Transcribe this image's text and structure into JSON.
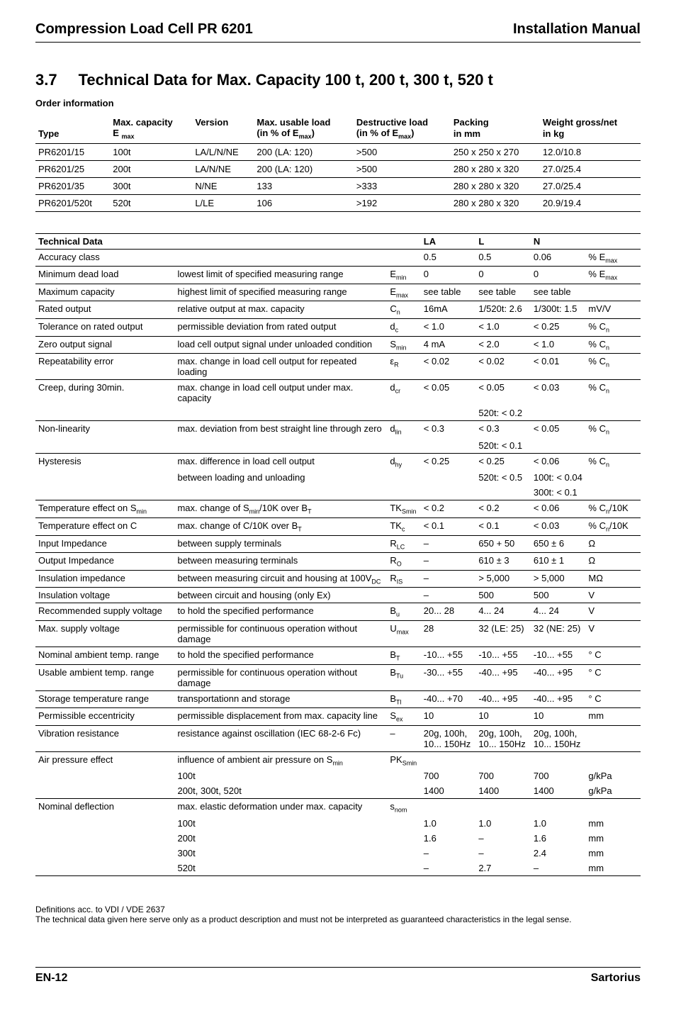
{
  "header": {
    "left": "Compression Load Cell PR 6201",
    "right": "Installation Manual"
  },
  "section": {
    "num": "3.7",
    "title": "Technical Data for Max. Capacity 100 t, 200 t, 300 t, 520 t"
  },
  "order_heading": "Order information",
  "order_cols": {
    "c1a": "",
    "c1b": "Type",
    "c2a": "Max. capacity",
    "c2b_html": "E <sub>max</sub>",
    "c3a": "Version",
    "c3b": "",
    "c4a": "Max. usable load",
    "c4b_html": "(in % of E<sub>max</sub>)",
    "c5a": "Destructive load",
    "c5b_html": "(in % of E<sub>max</sub>)",
    "c6a": "Packing",
    "c6b": "in mm",
    "c7a": "Weight gross/net",
    "c7b": "in kg"
  },
  "order_rows": [
    [
      "PR6201/15",
      "100t",
      "LA/L/N/NE",
      "200 (LA: 120)",
      ">500",
      "250 x 250 x 270",
      "12.0/10.8"
    ],
    [
      "PR6201/25",
      "200t",
      "LA/N/NE",
      "200 (LA: 120)",
      ">500",
      "280 x 280 x 320",
      "27.0/25.4"
    ],
    [
      "PR6201/35",
      "300t",
      "N/NE",
      "133",
      ">333",
      "280 x 280 x 320",
      "27.0/25.4"
    ],
    [
      "PR6201/520t",
      "520t",
      "L/LE",
      "106",
      ">192",
      "280 x 280 x 320",
      "20.9/19.4"
    ]
  ],
  "tech_head": {
    "p": "Technical Data",
    "la": "LA",
    "l": "L",
    "n": "N"
  },
  "tech": [
    {
      "p": "Accuracy class",
      "d": "",
      "s": "",
      "la": "0.5",
      "l": "0.5",
      "n": "0.06",
      "u_html": "% E<sub>max</sub>",
      "bb": true
    },
    {
      "p": "Minimum dead load",
      "d": "lowest limit of specified measuring range",
      "s_html": "E<sub>min</sub>",
      "la": "0",
      "l": "0",
      "n": "0",
      "u_html": "% E<sub>max</sub>",
      "bb": true
    },
    {
      "p": "Maximum capacity",
      "d": "highest limit of specified measuring range",
      "s_html": "E<sub>max</sub>",
      "la": "see table",
      "l": "see table",
      "n": "see table",
      "u": "",
      "bb": true
    },
    {
      "p": "Rated output",
      "d": "relative output at max. capacity",
      "s_html": "C<sub>n</sub>",
      "la": "16mA",
      "l": "1/520t: 2.6",
      "n": "1/300t: 1.5",
      "u": "mV/V",
      "bb": true
    },
    {
      "p": "Tolerance on rated output",
      "d": "permissible deviation from rated output",
      "s_html": "d<sub>c</sub>",
      "la": "< 1.0",
      "l": "< 1.0",
      "n": "< 0.25",
      "u_html": "% C<sub>n</sub>",
      "bb": true
    },
    {
      "p": "Zero output signal",
      "d": "load cell output signal under unloaded condition",
      "s_html": "S<sub>min</sub>",
      "la": "4 mA",
      "l": "< 2.0",
      "n": "< 1.0",
      "u_html": "% C<sub>n</sub>",
      "bb": true
    },
    {
      "p": "Repeatability error",
      "d": "max. change in load cell output for repeated loading",
      "s_html": "ε<sub>R</sub>",
      "la": "< 0.02",
      "l": "< 0.02",
      "n": "< 0.01",
      "u_html": "% C<sub>n</sub>",
      "bb": true
    },
    {
      "p": "Creep, during 30min.",
      "d": "max. change in load cell output under max. capacity",
      "s_html": "d<sub>cr</sub>",
      "la": "< 0.05",
      "l": "< 0.05",
      "n": "< 0.03",
      "u_html": "% C<sub>n</sub>"
    },
    {
      "p": "",
      "d": "",
      "s": "",
      "la": "",
      "l": "520t: < 0.2",
      "n": "",
      "u": "",
      "bb": true
    },
    {
      "p": "Non-linearity",
      "d": "max. deviation from best straight line through zero",
      "s_html": "d<sub>lin</sub>",
      "la": "< 0.3",
      "l": "< 0.3",
      "n": "< 0.05",
      "u_html": "% C<sub>n</sub>"
    },
    {
      "p": "",
      "d": "",
      "s": "",
      "la": "",
      "l": "520t: < 0.1",
      "n": "",
      "u": "",
      "bb": true
    },
    {
      "p": "Hysteresis",
      "d": "max. difference in load cell output",
      "s_html": "d<sub>hy</sub>",
      "la": "< 0.25",
      "l": "< 0.25",
      "n": "< 0.06",
      "u_html": "% C<sub>n</sub>"
    },
    {
      "p": "",
      "d": "between loading and unloading",
      "s": "",
      "la": "",
      "l": "520t: < 0.5",
      "n": "100t: < 0.04",
      "u": ""
    },
    {
      "p": "",
      "d": "",
      "s": "",
      "la": "",
      "l": "",
      "n": "300t: < 0.1",
      "u": "",
      "bb": true
    },
    {
      "p_html": "Temperature effect on S<sub>min</sub>",
      "d_html": "max. change of  S<sub>min</sub>/10K over B<sub>T</sub>",
      "s_html": "TK<sub>Smin</sub>",
      "la": "< 0.2",
      "l": "< 0.2",
      "n": "< 0.06",
      "u_html": "% C<sub>n</sub>/10K",
      "bb": true
    },
    {
      "p": "Temperature effect on C",
      "d_html": "max. change of  C/10K over B<sub>T</sub>",
      "s_html": "TK<sub>c</sub>",
      "la": "< 0.1",
      "l": "< 0.1",
      "n": "< 0.03",
      "u_html": "% C<sub>n</sub>/10K",
      "bb": true
    },
    {
      "p": "Input Impedance",
      "d": "between supply terminals",
      "s_html": "R<sub>LC</sub>",
      "la": "–",
      "l": "650 + 50",
      "n": "650 ± 6",
      "u": "Ω",
      "bb": true
    },
    {
      "p": "Output Impedance",
      "d": "between measuring terminals",
      "s_html": "R<sub>O</sub>",
      "la": "–",
      "l": "610 ± 3",
      "n": "610 ± 1",
      "u": "Ω",
      "bb": true
    },
    {
      "p": "Insulation impedance",
      "d_html": "between measuring circuit and housing at 100V<sub>DC</sub>",
      "s_html": "R<sub>IS</sub>",
      "la": "–",
      "l": "> 5,000",
      "n": "> 5,000",
      "u": "MΩ",
      "bb": true
    },
    {
      "p": "Insulation voltage",
      "d": "between circuit and housing (only Ex)",
      "s": "",
      "la": "–",
      "l": "500",
      "n": "500",
      "u": "V",
      "bb": true
    },
    {
      "p": "Recommended supply voltage",
      "d": "to hold the specified performance",
      "s_html": "B<sub>u</sub>",
      "la": "20... 28",
      "l": "4... 24",
      "n": "4... 24",
      "u": "V",
      "bb": true
    },
    {
      "p": "Max. supply voltage",
      "d": "permissible for continuous operation without damage",
      "s_html": "U<sub>max</sub>",
      "la": "28",
      "l": "32 (LE: 25)",
      "n": "32 (NE: 25)",
      "u": "V",
      "bb": true
    },
    {
      "p": "Nominal ambient temp. range",
      "d": "to hold the specified performance",
      "s_html": "B<sub>T</sub>",
      "la": "-10... +55",
      "l": "-10... +55",
      "n": "-10... +55",
      "u": "° C",
      "bb": true
    },
    {
      "p": "Usable ambient temp. range",
      "d": "permissible for continuous operation without damage",
      "s_html": "B<sub>Tu</sub>",
      "la": "-30... +55",
      "l": "-40... +95",
      "n": "-40... +95",
      "u": "° C",
      "bb": true
    },
    {
      "p": "Storage temperature range",
      "d": "transportationn and storage",
      "s_html": "B<sub>Tl</sub>",
      "la": "-40... +70",
      "l": "-40... +95",
      "n": "-40... +95",
      "u": "° C",
      "bb": true
    },
    {
      "p": "Permissible eccentricity",
      "d": "permissible displacement from max. capacity line",
      "s_html": "S<sub>ex</sub>",
      "la": "10",
      "l": "10",
      "n": "10",
      "u": "mm",
      "bb": true
    },
    {
      "p": "Vibration resistance",
      "d": "resistance against oscillation (IEC 68-2-6 Fc)",
      "s": "–",
      "la": "20g, 100h, 10... 150Hz",
      "l": "20g, 100h, 10... 150Hz",
      "n": "20g, 100h, 10... 150Hz",
      "u": "",
      "bb": true
    },
    {
      "p": "Air pressure effect",
      "d_html": "influence of ambient air pressure on S<sub>min</sub>",
      "s_html": "PK<sub>Smin</sub>",
      "la": "",
      "l": "",
      "n": "",
      "u": ""
    },
    {
      "p": "",
      "d": "100t",
      "s": "",
      "la": "700",
      "l": "700",
      "n": "700",
      "u": "g/kPa"
    },
    {
      "p": "",
      "d": "200t, 300t, 520t",
      "s": "",
      "la": "1400",
      "l": "1400",
      "n": "1400",
      "u": "g/kPa",
      "bb": true
    },
    {
      "p": "Nominal deflection",
      "d": "max. elastic deformation under max. capacity",
      "s_html": "s<sub>nom</sub>",
      "la": "",
      "l": "",
      "n": "",
      "u": ""
    },
    {
      "p": "",
      "d": "100t",
      "s": "",
      "la": "1.0",
      "l": "1.0",
      "n": "1.0",
      "u": "mm"
    },
    {
      "p": "",
      "d": "200t",
      "s": "",
      "la": "1.6",
      "l": "–",
      "n": "1.6",
      "u": "mm"
    },
    {
      "p": "",
      "d": "300t",
      "s": "",
      "la": "–",
      "l": "–",
      "n": "2.4",
      "u": "mm"
    },
    {
      "p": "",
      "d": "520t",
      "s": "",
      "la": "–",
      "l": "2.7",
      "n": "–",
      "u": "mm",
      "bb": true
    }
  ],
  "footnotes": {
    "l1": "Definitions acc. to VDI / VDE 2637",
    "l2": "The technical data given here serve only as a product description and must not be interpreted as guaranteed characteristics in the legal sense."
  },
  "footer": {
    "left": "EN-12",
    "right": "Sartorius"
  }
}
